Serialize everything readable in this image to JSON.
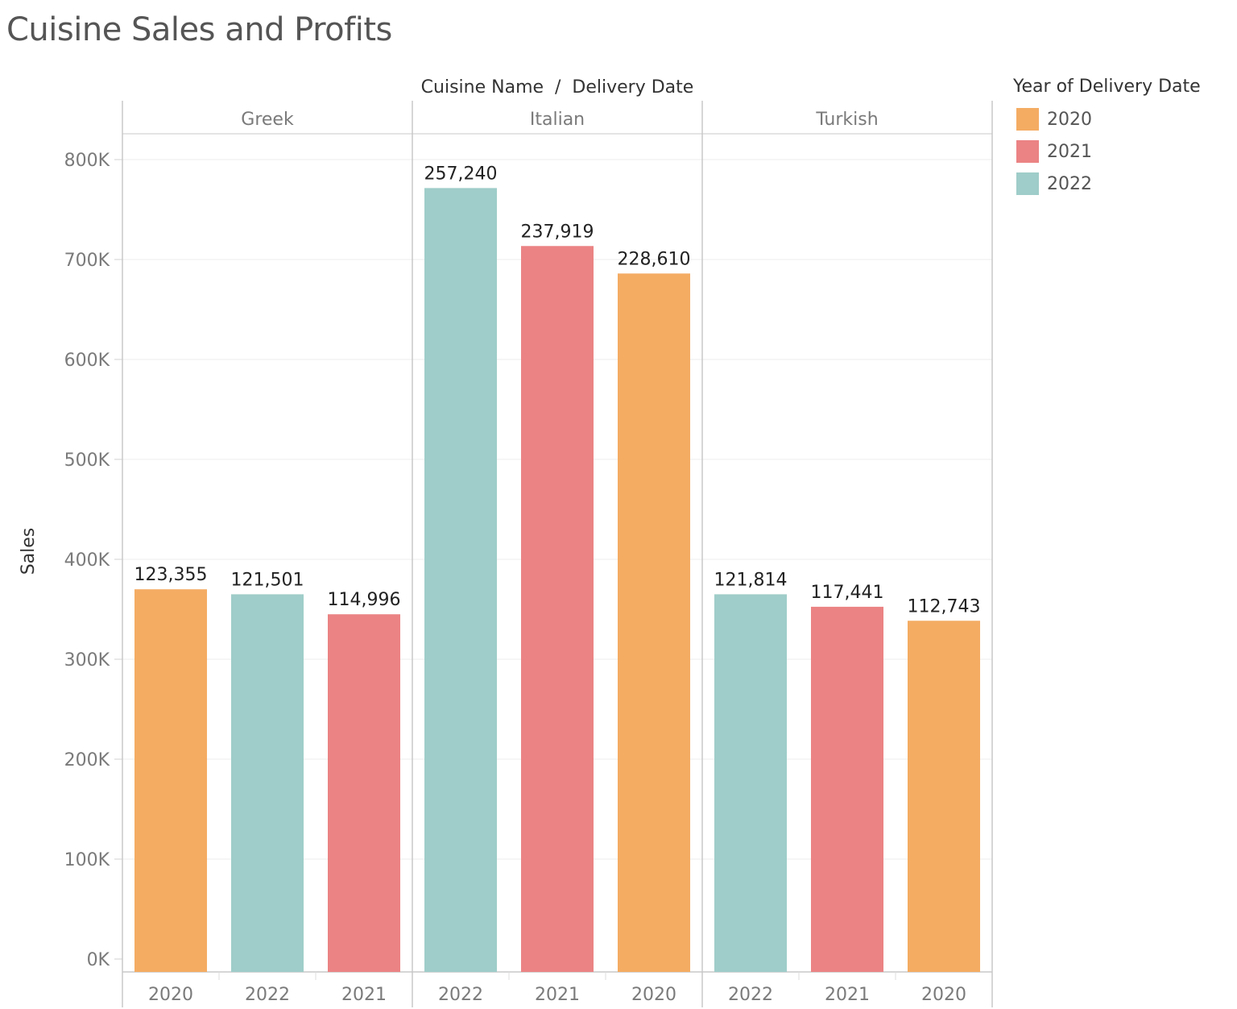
{
  "title": "Cuisine Sales and Profits",
  "colors": {
    "2020": "#f4ac63",
    "2021": "#eb8384",
    "2022": "#9fcdc9"
  },
  "legend": {
    "title": "Year of Delivery Date",
    "items": [
      {
        "label": "2020",
        "color": "#f4ac63"
      },
      {
        "label": "2021",
        "color": "#eb8384"
      },
      {
        "label": "2022",
        "color": "#9fcdc9"
      }
    ]
  },
  "chart_data": {
    "type": "bar",
    "title": "Cuisine Sales and Profits",
    "column_header": "Cuisine Name  /  Delivery Date",
    "ylabel": "Sales",
    "ylim": [
      0,
      840000
    ],
    "yticks": [
      {
        "value": 0,
        "label": "0K"
      },
      {
        "value": 100000,
        "label": "100K"
      },
      {
        "value": 200000,
        "label": "200K"
      },
      {
        "value": 300000,
        "label": "300K"
      },
      {
        "value": 400000,
        "label": "400K"
      },
      {
        "value": 500000,
        "label": "500K"
      },
      {
        "value": 600000,
        "label": "600K"
      },
      {
        "value": 700000,
        "label": "700K"
      },
      {
        "value": 800000,
        "label": "800K"
      }
    ],
    "grid": true,
    "legend_position": "right",
    "panels": [
      {
        "name": "Greek",
        "bars": [
          {
            "year": "2020",
            "value": 370000,
            "label": "123,355"
          },
          {
            "year": "2022",
            "value": 365000,
            "label": "121,501"
          },
          {
            "year": "2021",
            "value": 345000,
            "label": "114,996"
          }
        ]
      },
      {
        "name": "Italian",
        "bars": [
          {
            "year": "2022",
            "value": 771500,
            "label": "257,240"
          },
          {
            "year": "2021",
            "value": 713500,
            "label": "237,919"
          },
          {
            "year": "2020",
            "value": 686000,
            "label": "228,610"
          }
        ]
      },
      {
        "name": "Turkish",
        "bars": [
          {
            "year": "2022",
            "value": 365000,
            "label": "121,814"
          },
          {
            "year": "2021",
            "value": 352500,
            "label": "117,441"
          },
          {
            "year": "2020",
            "value": 338500,
            "label": "112,743"
          }
        ]
      }
    ]
  }
}
